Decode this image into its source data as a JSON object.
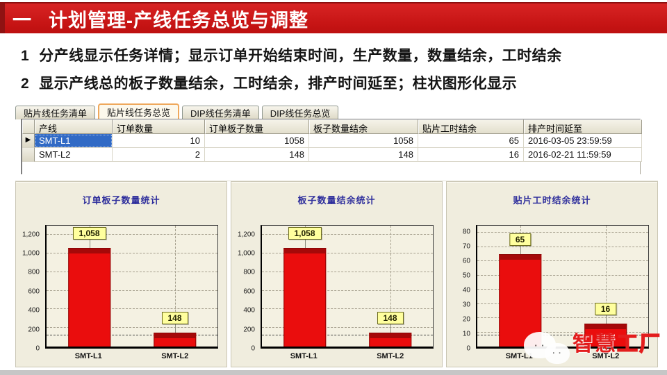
{
  "header": {
    "marker": "一",
    "title": "计划管理-产线任务总览与调整"
  },
  "bullets": [
    {
      "num": "1",
      "text": "分产线显示任务详情；显示订单开始结束时间，生产数量，数量结余，工时结余"
    },
    {
      "num": "2",
      "text": "显示产线总的板子数量结余，工时结余，排产时间延至；柱状图形化显示"
    }
  ],
  "tabs": [
    {
      "label": "贴片线任务清单",
      "selected": false
    },
    {
      "label": "贴片线任务总览",
      "selected": true
    },
    {
      "label": "DIP线任务清单",
      "selected": false
    },
    {
      "label": "DIP线任务总览",
      "selected": false
    }
  ],
  "table": {
    "columns": [
      "产线",
      "订单数量",
      "订单板子数量",
      "板子数量结余",
      "贴片工时结余",
      "排产时间延至"
    ],
    "rows": [
      {
        "selected": true,
        "cells": [
          "SMT-L1",
          "10",
          "1058",
          "1058",
          "65",
          "2016-03-05 23:59:59"
        ]
      },
      {
        "selected": false,
        "cells": [
          "SMT-L2",
          "2",
          "148",
          "148",
          "16",
          "2016-02-21 11:59:59"
        ]
      }
    ]
  },
  "chart_data": [
    {
      "type": "bar",
      "title": "订单板子数量统计",
      "categories": [
        "SMT-L1",
        "SMT-L2"
      ],
      "values": [
        1058,
        148
      ],
      "labels": [
        "1,058",
        "148"
      ],
      "ylim": [
        0,
        1300
      ],
      "yticks": [
        0,
        200,
        400,
        600,
        800,
        1000,
        1200
      ],
      "ytick_labels": [
        "0",
        "200",
        "400",
        "600",
        "800",
        "1,000",
        "1,200"
      ],
      "grid": true,
      "legend": false,
      "bar_color": "#ea0d0d"
    },
    {
      "type": "bar",
      "title": "板子数量结余统计",
      "categories": [
        "SMT-L1",
        "SMT-L2"
      ],
      "values": [
        1058,
        148
      ],
      "labels": [
        "1,058",
        "148"
      ],
      "ylim": [
        0,
        1300
      ],
      "yticks": [
        0,
        200,
        400,
        600,
        800,
        1000,
        1200
      ],
      "ytick_labels": [
        "0",
        "200",
        "400",
        "600",
        "800",
        "1,000",
        "1,200"
      ],
      "grid": true,
      "legend": false,
      "bar_color": "#ea0d0d"
    },
    {
      "type": "bar",
      "title": "贴片工时结余统计",
      "categories": [
        "SMT-L1",
        "SMT-L2"
      ],
      "values": [
        65,
        16
      ],
      "labels": [
        "65",
        "16"
      ],
      "ylim": [
        0,
        85
      ],
      "yticks": [
        0,
        10,
        20,
        30,
        40,
        50,
        60,
        70,
        80
      ],
      "ytick_labels": [
        "0",
        "10",
        "20",
        "30",
        "40",
        "50",
        "60",
        "70",
        "80"
      ],
      "grid": true,
      "legend": false,
      "bar_color": "#ea0d0d"
    }
  ],
  "watermark": {
    "bubble_dots": "· ·",
    "text_1": "智慧",
    "text_2": "工厂"
  },
  "colors": {
    "header_red": "#c61414",
    "header_accent": "#8f1212",
    "selected_cell_blue": "#316ac5",
    "chart_panel_bg": "#f0edde",
    "bar_red": "#ea0d0d",
    "data_label_bg": "#ffff9e",
    "chart_title_navy": "#2e2e9c",
    "tab_highlight_orange": "#efa85c"
  }
}
